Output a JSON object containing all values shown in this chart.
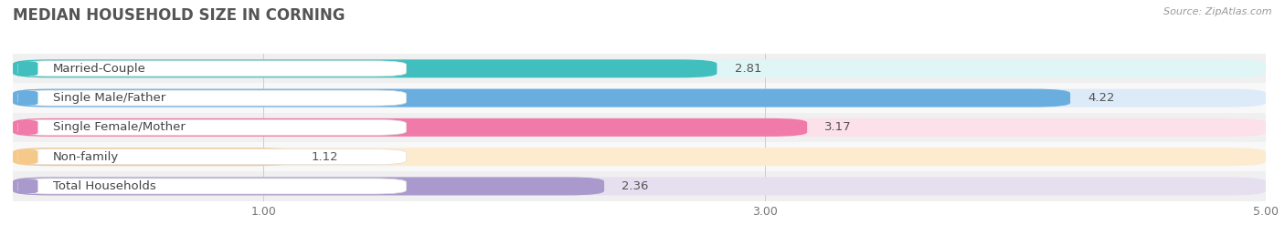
{
  "title": "MEDIAN HOUSEHOLD SIZE IN CORNING",
  "source": "Source: ZipAtlas.com",
  "categories": [
    "Married-Couple",
    "Single Male/Father",
    "Single Female/Mother",
    "Non-family",
    "Total Households"
  ],
  "values": [
    2.81,
    4.22,
    3.17,
    1.12,
    2.36
  ],
  "bar_colors": [
    "#41bfbf",
    "#6aaee0",
    "#f07aaa",
    "#f5c98a",
    "#aa99cc"
  ],
  "bar_bg_colors": [
    "#e0f5f5",
    "#ddeaf8",
    "#fce0ea",
    "#fdebd0",
    "#e5dff0"
  ],
  "row_bg_colors": [
    "#f0f0f0",
    "#f8f8f8"
  ],
  "xlim_data": [
    0,
    5.0
  ],
  "xticks": [
    1.0,
    3.0,
    5.0
  ],
  "bar_height": 0.62,
  "label_fontsize": 9.5,
  "value_fontsize": 9.5,
  "title_fontsize": 12,
  "title_color": "#555555",
  "value_color": "#555555",
  "label_color": "#444444"
}
